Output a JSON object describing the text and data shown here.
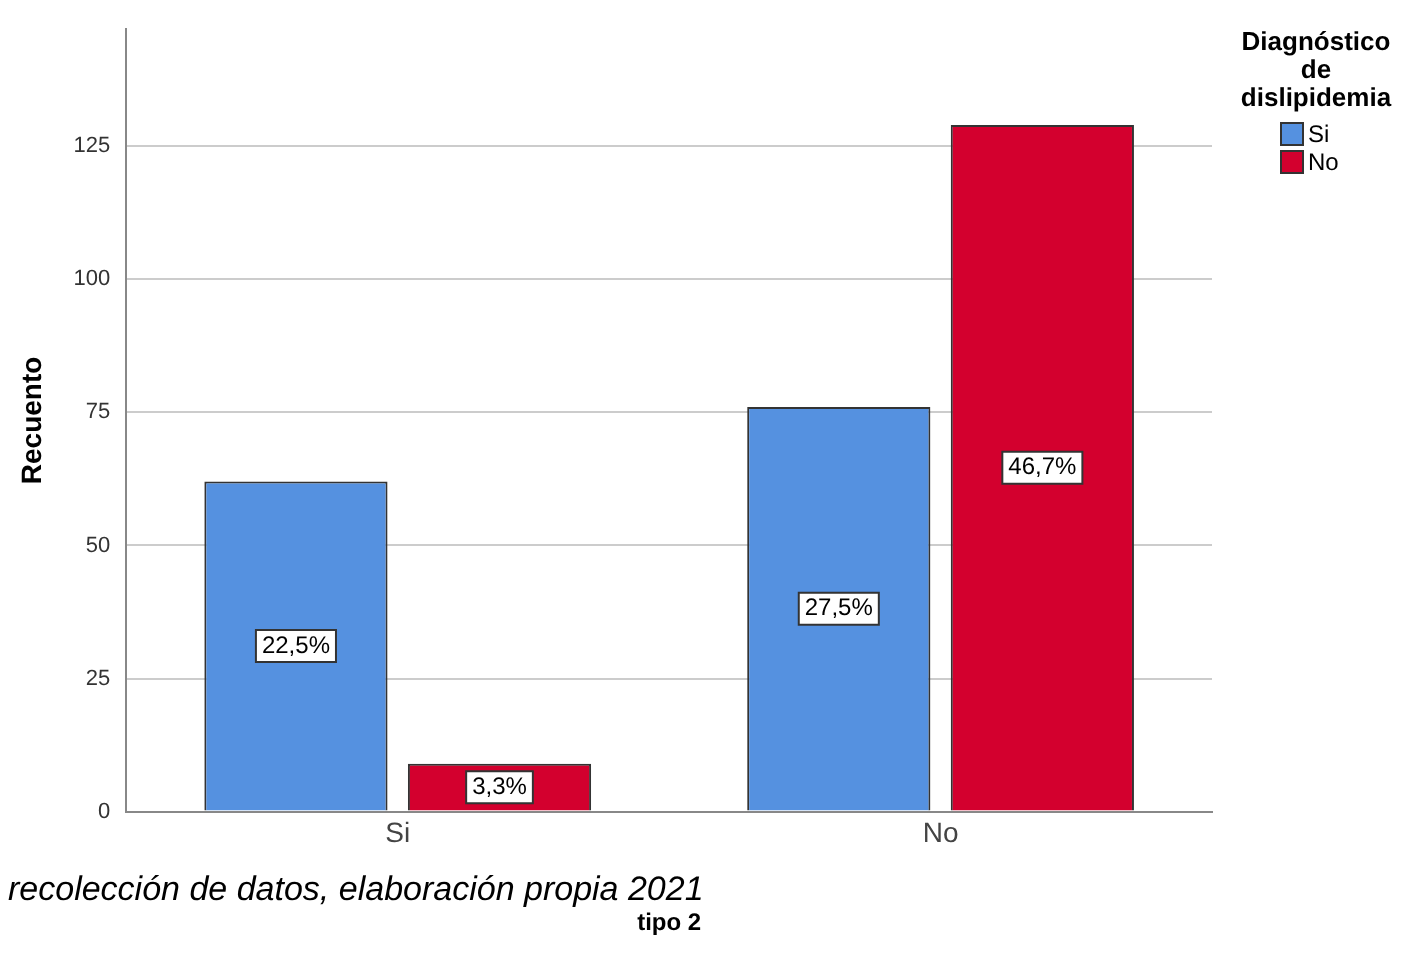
{
  "chart_data": {
    "type": "bar",
    "categories": [
      "Si",
      "No"
    ],
    "xlabel": "tipo 2",
    "ylabel": "Recuento",
    "legend_title": "Diagnóstico de dislipidemia",
    "series": [
      {
        "name": "Si",
        "color": "#5591e0",
        "values": [
          62,
          76
        ]
      },
      {
        "name": "No",
        "color": "#d3002e",
        "values": [
          9,
          129
        ]
      }
    ],
    "ylim": [
      0,
      147
    ],
    "yticks": [
      0,
      25,
      50,
      75,
      100,
      125
    ],
    "grid": "y",
    "legend": "top right",
    "annotations": [
      "recolección de datos, elaboración propia 2021",
      "22,5%",
      "3,3%",
      "27,5%",
      "46,7%"
    ]
  }
}
